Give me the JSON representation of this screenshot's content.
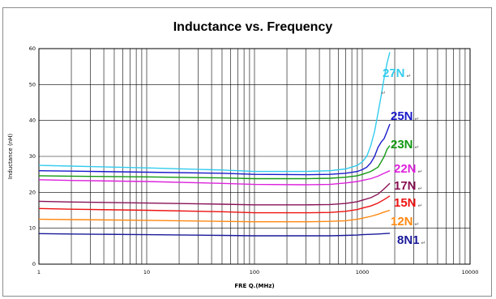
{
  "chart_data": {
    "type": "line",
    "title": "Inductance vs. Frequency",
    "xlabel": "FRE Q.(MHz)",
    "ylabel": "Inductance (nH)",
    "xscale": "log",
    "xlim": [
      1,
      10000
    ],
    "ylim": [
      0,
      60
    ],
    "xticks": [
      "1",
      "10",
      "100",
      "1000",
      "10000"
    ],
    "yticks": [
      "0",
      "10",
      "20",
      "30",
      "40",
      "50",
      "60"
    ],
    "grid": true,
    "legend": "inline labels at right end of each curve",
    "return_mark": "↵",
    "series": [
      {
        "name": "27N",
        "color": "#33ccee",
        "x": [
          1,
          2,
          10,
          50,
          100,
          300,
          500,
          700,
          900,
          1000,
          1100,
          1200,
          1300,
          1400,
          1500,
          1600,
          1700,
          1800
        ],
        "y": [
          27.5,
          27.3,
          26.8,
          26.2,
          25.8,
          25.8,
          26.0,
          26.5,
          27.5,
          28.5,
          30,
          33,
          37,
          42,
          47,
          52,
          56,
          59
        ]
      },
      {
        "name": "25N",
        "color": "#1a1acc",
        "x": [
          1,
          2,
          10,
          50,
          100,
          300,
          500,
          700,
          900,
          1000,
          1100,
          1200,
          1300,
          1400,
          1500,
          1600,
          1700,
          1800
        ],
        "y": [
          26.0,
          25.9,
          25.6,
          25.3,
          25.0,
          24.9,
          25.0,
          25.3,
          25.8,
          26.3,
          27.0,
          28.2,
          30.0,
          32.5,
          34.0,
          35.0,
          37.0,
          39.0
        ]
      },
      {
        "name": "23N",
        "color": "#119911",
        "x": [
          1,
          2,
          10,
          50,
          100,
          300,
          500,
          700,
          900,
          1000,
          1200,
          1400,
          1500,
          1600,
          1700,
          1800
        ],
        "y": [
          24.6,
          24.5,
          24.3,
          24.0,
          23.8,
          23.8,
          23.9,
          24.2,
          24.6,
          25.0,
          25.8,
          27.0,
          28.5,
          30.0,
          32.0,
          33.0
        ]
      },
      {
        "name": "22N",
        "color": "#dd22dd",
        "x": [
          1,
          2,
          10,
          50,
          100,
          300,
          500,
          700,
          900,
          1000,
          1200,
          1400,
          1600,
          1800
        ],
        "y": [
          23.5,
          23.3,
          23.0,
          22.5,
          22.2,
          22.1,
          22.2,
          22.6,
          23.0,
          23.3,
          23.8,
          24.5,
          25.3,
          26.0
        ]
      },
      {
        "name": "17N",
        "color": "#881155",
        "x": [
          1,
          2,
          10,
          50,
          100,
          300,
          500,
          700,
          900,
          1000,
          1200,
          1400,
          1600,
          1800
        ],
        "y": [
          17.5,
          17.3,
          17.0,
          16.7,
          16.5,
          16.5,
          16.6,
          16.9,
          17.4,
          17.8,
          18.5,
          19.5,
          21.0,
          22.5
        ]
      },
      {
        "name": "15N",
        "color": "#ee1111",
        "x": [
          1,
          2,
          10,
          50,
          100,
          300,
          500,
          700,
          900,
          1000,
          1200,
          1400,
          1600,
          1800
        ],
        "y": [
          15.5,
          15.3,
          15.0,
          14.6,
          14.3,
          14.3,
          14.4,
          14.7,
          15.2,
          15.6,
          16.2,
          17.0,
          18.0,
          19.0
        ]
      },
      {
        "name": "12N",
        "color": "#ff8811",
        "x": [
          1,
          2,
          10,
          50,
          100,
          300,
          500,
          700,
          900,
          1000,
          1200,
          1400,
          1600,
          1800
        ],
        "y": [
          12.5,
          12.4,
          12.2,
          11.9,
          11.8,
          11.8,
          11.9,
          12.1,
          12.5,
          12.8,
          13.3,
          13.9,
          14.5,
          15.0
        ]
      },
      {
        "name": "8N1",
        "color": "#1a1a99",
        "x": [
          1,
          2,
          10,
          50,
          100,
          300,
          500,
          700,
          900,
          1000,
          1200,
          1400,
          1600,
          1800
        ],
        "y": [
          8.5,
          8.4,
          8.2,
          8.0,
          7.9,
          7.9,
          7.9,
          8.0,
          8.1,
          8.2,
          8.3,
          8.4,
          8.5,
          8.6
        ]
      }
    ]
  }
}
